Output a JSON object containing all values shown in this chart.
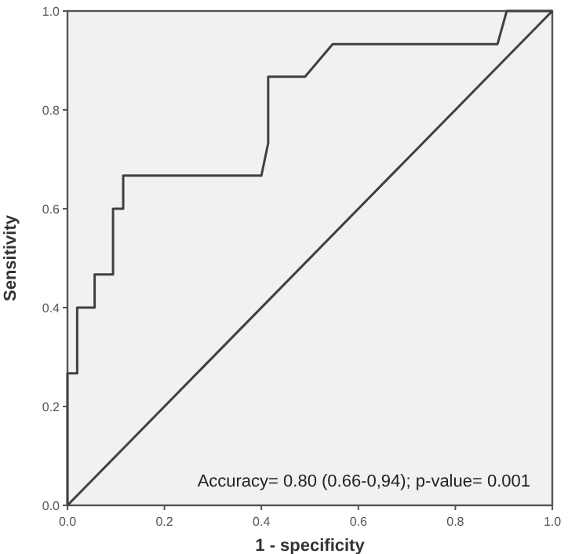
{
  "chart_data": {
    "type": "line",
    "xlabel": "1 - specificity",
    "ylabel": "Sensitivity",
    "xlim": [
      0,
      1
    ],
    "ylim": [
      0,
      1
    ],
    "xticks": [
      {
        "value": 0,
        "label": "0.0"
      },
      0.2,
      0.4,
      0.6,
      0.8,
      {
        "value": 1,
        "label": "1.0"
      }
    ],
    "yticks": [
      {
        "value": 0,
        "label": "0.0"
      },
      0.2,
      0.4,
      0.6,
      0.8,
      {
        "value": 1,
        "label": "1.0"
      }
    ],
    "grid": false,
    "marker": "none",
    "line_style": "solid",
    "annotations": [
      "Accuracy= 0.80 (0.66-0,94); p-value= 0.001"
    ],
    "series": [
      {
        "color": "#404040",
        "x": [
          0,
          0,
          0.02,
          0.02,
          0.056,
          0.056,
          0.094,
          0.094,
          0.115,
          0.115,
          0.4,
          0.414,
          0.414,
          0.49,
          0.547,
          0.887,
          0.906,
          1
        ],
        "values": [
          0,
          0.267,
          0.267,
          0.4,
          0.4,
          0.467,
          0.467,
          0.6,
          0.6,
          0.667,
          0.667,
          0.733,
          0.867,
          0.867,
          0.933,
          0.933,
          1,
          1
        ]
      },
      {
        "color": "#404040",
        "x": [
          0,
          1
        ],
        "values": [
          0,
          1
        ]
      }
    ]
  }
}
